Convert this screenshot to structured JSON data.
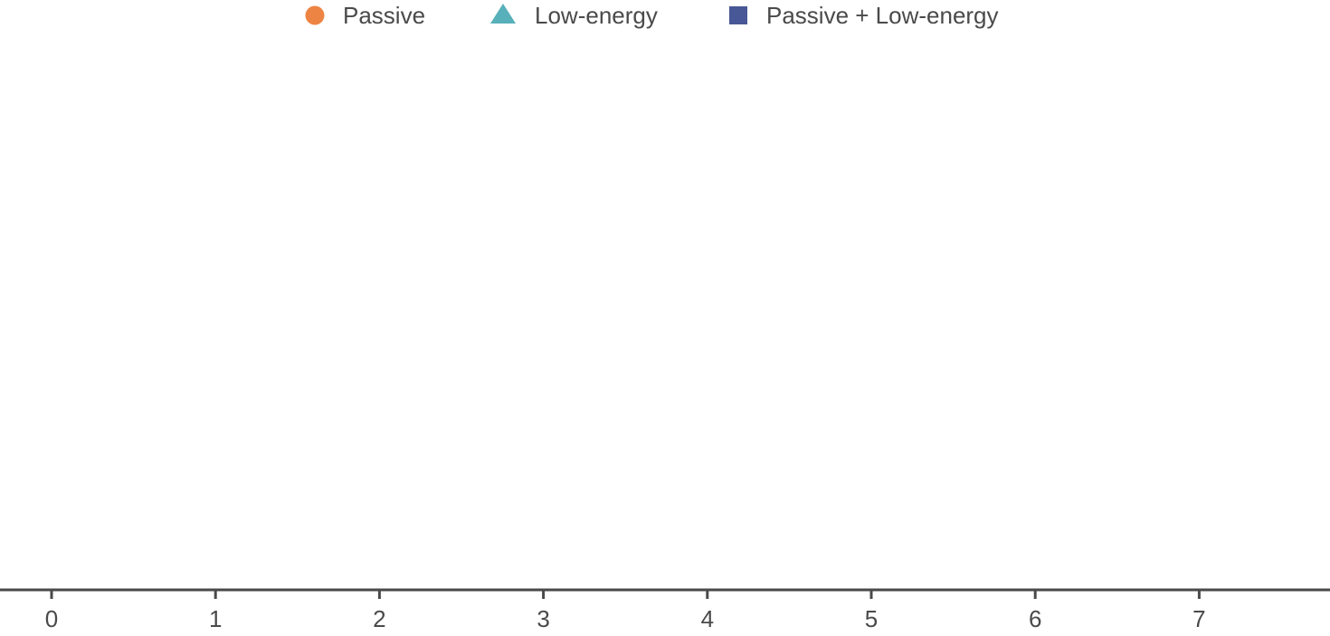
{
  "chart_data": {
    "type": "scatter",
    "title": "",
    "xlabel": "",
    "ylabel": "",
    "xlim": [
      -0.3,
      7.8
    ],
    "xticks": [
      0,
      1,
      2,
      3,
      4,
      5,
      6,
      7
    ],
    "grid": false,
    "legend_position": "top-center",
    "series": [
      {
        "name": "Passive",
        "marker": "circle",
        "color": "#EE8443",
        "points": []
      },
      {
        "name": "Low-energy",
        "marker": "triangle",
        "color": "#57B0BA",
        "points": []
      },
      {
        "name": "Passive + Low-energy",
        "marker": "square",
        "color": "#485795",
        "points": []
      }
    ],
    "axis_color": "#4a4a4a"
  }
}
